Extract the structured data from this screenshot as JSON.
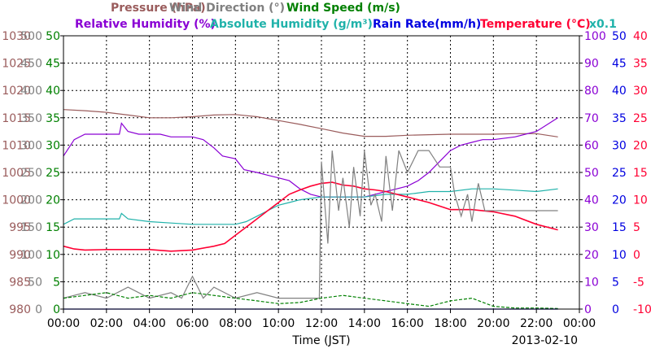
{
  "chart_data": {
    "type": "line",
    "date": "2013-02-10",
    "xlabel": "Time (JST)",
    "x_ticks": [
      "00:00",
      "02:00",
      "04:00",
      "06:00",
      "08:00",
      "10:00",
      "12:00",
      "14:00",
      "16:00",
      "18:00",
      "20:00",
      "22:00",
      "00:00"
    ],
    "xlim": [
      0,
      24
    ],
    "grid": true,
    "legend_rows": [
      [
        {
          "key": "pressure",
          "text": "Pressure (hPa)"
        },
        {
          "key": "wind_direction",
          "text": "Wind Direction (°)"
        },
        {
          "key": "wind_speed",
          "text": "Wind Speed (m/s)"
        }
      ],
      [
        {
          "key": "relative_humidity",
          "text": "Relative Humidity (%)"
        },
        {
          "key": "absolute_humidity",
          "text": "Absolute Humidity (g/m³)"
        },
        {
          "key": "rain_rate",
          "text": "Rain Rate(mm/h)"
        },
        {
          "key": "temperature",
          "text": "Temperature (°C)"
        }
      ]
    ],
    "absolute_humidity_scale_note": "x0.1",
    "colors": {
      "pressure": "#9a5c5c",
      "wind_direction": "#808080",
      "wind_speed": "#008000",
      "relative_humidity": "#8a00d4",
      "absolute_humidity": "#20b2aa",
      "rain_rate": "#0000e0",
      "temperature": "#ff0033"
    },
    "axes": {
      "pressure": {
        "min": 980,
        "max": 1030,
        "ticks": [
          "980",
          "985",
          "990",
          "995",
          "1000",
          "1005",
          "1010",
          "1015",
          "1020",
          "1025",
          "1030"
        ]
      },
      "wind_direction": {
        "min": 0,
        "max": 500,
        "ticks": [
          "0",
          "50",
          "100",
          "150",
          "200",
          "250",
          "300",
          "350",
          "400",
          "450",
          "500"
        ]
      },
      "wind_speed": {
        "min": 0,
        "max": 50,
        "ticks": [
          "0",
          "5",
          "10",
          "15",
          "20",
          "25",
          "30",
          "35",
          "40",
          "45",
          "50"
        ]
      },
      "relative_humidity": {
        "min": 0,
        "max": 100,
        "ticks": [
          "0",
          "10",
          "20",
          "30",
          "40",
          "50",
          "60",
          "70",
          "80",
          "90",
          "100"
        ]
      },
      "rain_rate": {
        "min": 0,
        "max": 50,
        "ticks": [
          "0",
          "5",
          "10",
          "15",
          "20",
          "25",
          "30",
          "35",
          "40",
          "45",
          "50"
        ]
      },
      "temperature": {
        "min": -10,
        "max": 40,
        "ticks": [
          "-10",
          "-5",
          "0",
          "5",
          "10",
          "15",
          "20",
          "25",
          "30",
          "35",
          "40"
        ]
      }
    },
    "series": [
      {
        "key": "pressure",
        "axis": "pressure",
        "x": [
          0,
          1,
          2,
          3,
          4,
          5,
          6,
          7,
          8,
          9,
          10,
          11,
          12,
          13,
          14,
          15,
          16,
          17,
          18,
          19,
          20,
          21,
          22,
          23
        ],
        "y": [
          1016.5,
          1016.3,
          1016,
          1015.5,
          1015,
          1015,
          1015.2,
          1015.5,
          1015.6,
          1015.2,
          1014.5,
          1013.8,
          1013,
          1012.2,
          1011.6,
          1011.6,
          1011.8,
          1011.9,
          1012,
          1012,
          1012,
          1012.1,
          1012.1,
          1011.5
        ]
      },
      {
        "key": "relative_humidity",
        "axis": "relative_humidity",
        "x": [
          0,
          0.5,
          1,
          2,
          2.6,
          2.7,
          3,
          3.5,
          4,
          4.5,
          5,
          6,
          6.5,
          7,
          7.4,
          8,
          8.4,
          9,
          9.5,
          10,
          10.5,
          11,
          11.5,
          12,
          12.5,
          13,
          13.5,
          14,
          14.5,
          15,
          15.5,
          16,
          16.5,
          17,
          17.5,
          18,
          18.5,
          19,
          19.5,
          20,
          21,
          22,
          23
        ],
        "y": [
          56,
          62,
          64,
          64,
          64,
          68,
          65,
          64,
          64,
          64,
          63,
          63,
          62,
          59,
          56,
          55,
          51,
          50,
          49,
          48,
          47,
          44,
          42,
          41,
          41,
          41,
          41,
          41,
          42,
          43,
          44,
          45,
          47,
          50,
          54,
          58,
          60,
          61,
          62,
          62,
          63,
          65,
          70
        ]
      },
      {
        "key": "absolute_humidity",
        "axis": "relative_humidity",
        "x": [
          0,
          0.5,
          1,
          2,
          2.6,
          2.7,
          3,
          4,
          5,
          6,
          7,
          8,
          8.5,
          9,
          9.5,
          10,
          10.5,
          11,
          12,
          13,
          14,
          15,
          16,
          17,
          18,
          19,
          20,
          21,
          22,
          23
        ],
        "y": [
          31,
          33,
          33,
          33,
          33,
          35,
          33,
          32,
          31.5,
          31,
          31,
          31,
          32,
          34,
          36,
          38,
          39,
          40,
          41,
          41,
          41,
          42,
          42,
          43,
          43,
          44,
          44,
          43.5,
          43,
          44
        ]
      },
      {
        "key": "temperature",
        "axis": "temperature",
        "x": [
          0,
          0.5,
          1,
          2,
          3,
          4,
          5,
          6,
          7,
          7.5,
          8,
          8.5,
          9,
          9.5,
          10,
          10.5,
          11,
          11.5,
          12,
          12.5,
          13,
          13.5,
          14,
          14.5,
          15,
          16,
          17,
          18,
          19,
          20,
          21,
          22,
          23
        ],
        "y": [
          1.5,
          1,
          0.8,
          0.9,
          0.9,
          0.9,
          0.6,
          0.8,
          1.5,
          2,
          3.5,
          5,
          6.5,
          8,
          9.5,
          11,
          11.8,
          12.5,
          13,
          13.2,
          12.7,
          12.5,
          12,
          11.8,
          11.5,
          10.5,
          9.5,
          8.2,
          8.2,
          7.8,
          7,
          5.5,
          4.5
        ]
      },
      {
        "key": "wind_direction",
        "axis": "wind_direction",
        "x": [
          0,
          1,
          2,
          3,
          4,
          5,
          5.5,
          6,
          6.5,
          7,
          8,
          9,
          10,
          11,
          11.9,
          12,
          12.3,
          12.5,
          12.8,
          13,
          13.3,
          13.5,
          13.8,
          14,
          14.3,
          14.5,
          14.8,
          15,
          15.3,
          15.6,
          16,
          16.5,
          17,
          17.5,
          18,
          18.2,
          18.5,
          18.8,
          19,
          19.3,
          19.6,
          20,
          21,
          22,
          23
        ],
        "y": [
          20,
          30,
          20,
          40,
          20,
          30,
          20,
          60,
          20,
          40,
          20,
          30,
          20,
          20,
          20,
          270,
          120,
          290,
          180,
          240,
          150,
          260,
          170,
          290,
          190,
          210,
          160,
          280,
          180,
          290,
          250,
          290,
          290,
          260,
          260,
          210,
          170,
          210,
          160,
          230,
          180,
          180,
          180,
          180,
          180
        ]
      },
      {
        "key": "wind_speed",
        "axis": "wind_speed",
        "x": [
          0,
          1,
          2,
          3,
          4,
          5,
          6,
          7,
          8,
          9,
          10,
          11,
          12,
          13,
          14,
          15,
          16,
          17,
          18,
          19,
          20,
          21,
          22,
          23
        ],
        "y": [
          2,
          2.5,
          3,
          2,
          2.5,
          2,
          3,
          2.5,
          2,
          1.5,
          1,
          1.2,
          2,
          2.5,
          2,
          1.5,
          1,
          0.5,
          1.5,
          2,
          0.5,
          0.2,
          0.2,
          0.1
        ]
      },
      {
        "key": "rain_rate",
        "axis": "rain_rate",
        "x": [
          0,
          23
        ],
        "y": [
          0,
          0
        ]
      }
    ]
  }
}
